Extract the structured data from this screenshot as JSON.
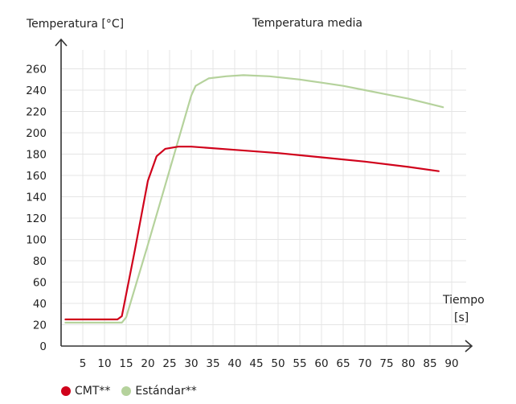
{
  "chart_data": {
    "type": "line",
    "title": "Temperatura media",
    "ylabel": "Temperatura [°C]",
    "xlabel": "Tiempo",
    "xlabel_unit": "[s]",
    "xlim": [
      0,
      92
    ],
    "ylim": [
      0,
      270
    ],
    "x_ticks": [
      "5",
      "10",
      "15",
      "20",
      "25",
      "30",
      "35",
      "40",
      "45",
      "50",
      "55",
      "60",
      "65",
      "70",
      "75",
      "80",
      "85",
      "90"
    ],
    "y_ticks": [
      "0",
      "20",
      "40",
      "60",
      "80",
      "100",
      "120",
      "140",
      "160",
      "180",
      "200",
      "220",
      "240",
      "260"
    ],
    "grid": true,
    "legend_position": "bottom-left",
    "series": [
      {
        "name": "CMT**",
        "legend_label": "CMT**",
        "color": "#d0021b",
        "points": [
          [
            1,
            25
          ],
          [
            13,
            25
          ],
          [
            14,
            28
          ],
          [
            17,
            90
          ],
          [
            20,
            155
          ],
          [
            22,
            178
          ],
          [
            24,
            185
          ],
          [
            27,
            187
          ],
          [
            30,
            187
          ],
          [
            40,
            184
          ],
          [
            50,
            181
          ],
          [
            60,
            177
          ],
          [
            70,
            173
          ],
          [
            80,
            168
          ],
          [
            87,
            164
          ]
        ]
      },
      {
        "name": "Estándar**",
        "legend_label": "Estándar**",
        "color": "#b5d29c",
        "points": [
          [
            1,
            22
          ],
          [
            14,
            22
          ],
          [
            15,
            27
          ],
          [
            20,
            95
          ],
          [
            25,
            165
          ],
          [
            30,
            235
          ],
          [
            31,
            244
          ],
          [
            34,
            251
          ],
          [
            38,
            253
          ],
          [
            42,
            254
          ],
          [
            48,
            253
          ],
          [
            55,
            250
          ],
          [
            60,
            247
          ],
          [
            65,
            244
          ],
          [
            70,
            240
          ],
          [
            75,
            236
          ],
          [
            80,
            232
          ],
          [
            85,
            227
          ],
          [
            88,
            224
          ]
        ]
      }
    ]
  }
}
